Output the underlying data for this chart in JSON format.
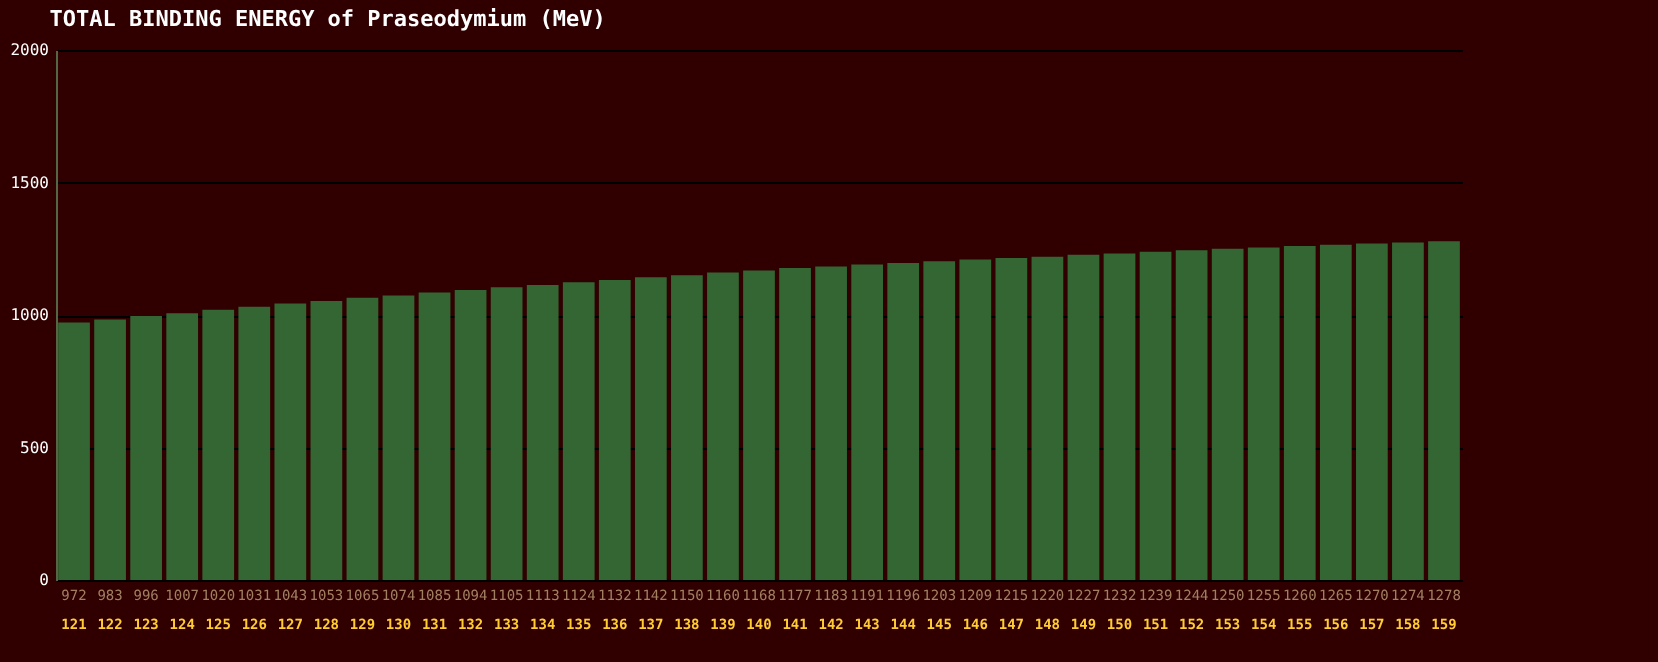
{
  "chart_data": {
    "type": "bar",
    "title": "TOTAL BINDING ENERGY of Praseodymium (MeV)",
    "categories": [
      "121",
      "122",
      "123",
      "124",
      "125",
      "126",
      "127",
      "128",
      "129",
      "130",
      "131",
      "132",
      "133",
      "134",
      "135",
      "136",
      "137",
      "138",
      "139",
      "140",
      "141",
      "142",
      "143",
      "144",
      "145",
      "146",
      "147",
      "148",
      "149",
      "150",
      "151",
      "152",
      "153",
      "154",
      "155",
      "156",
      "157",
      "158",
      "159"
    ],
    "values": [
      972,
      983,
      996,
      1007,
      1020,
      1031,
      1043,
      1053,
      1065,
      1074,
      1085,
      1094,
      1105,
      1113,
      1124,
      1132,
      1142,
      1150,
      1160,
      1168,
      1177,
      1183,
      1191,
      1196,
      1203,
      1209,
      1215,
      1220,
      1227,
      1232,
      1239,
      1244,
      1250,
      1255,
      1260,
      1265,
      1270,
      1274,
      1278
    ],
    "color": "#336633",
    "ylim": [
      0,
      2000
    ],
    "yticks": [
      0,
      500,
      1000,
      1500,
      2000
    ],
    "grid": "y",
    "data_labels": true
  }
}
